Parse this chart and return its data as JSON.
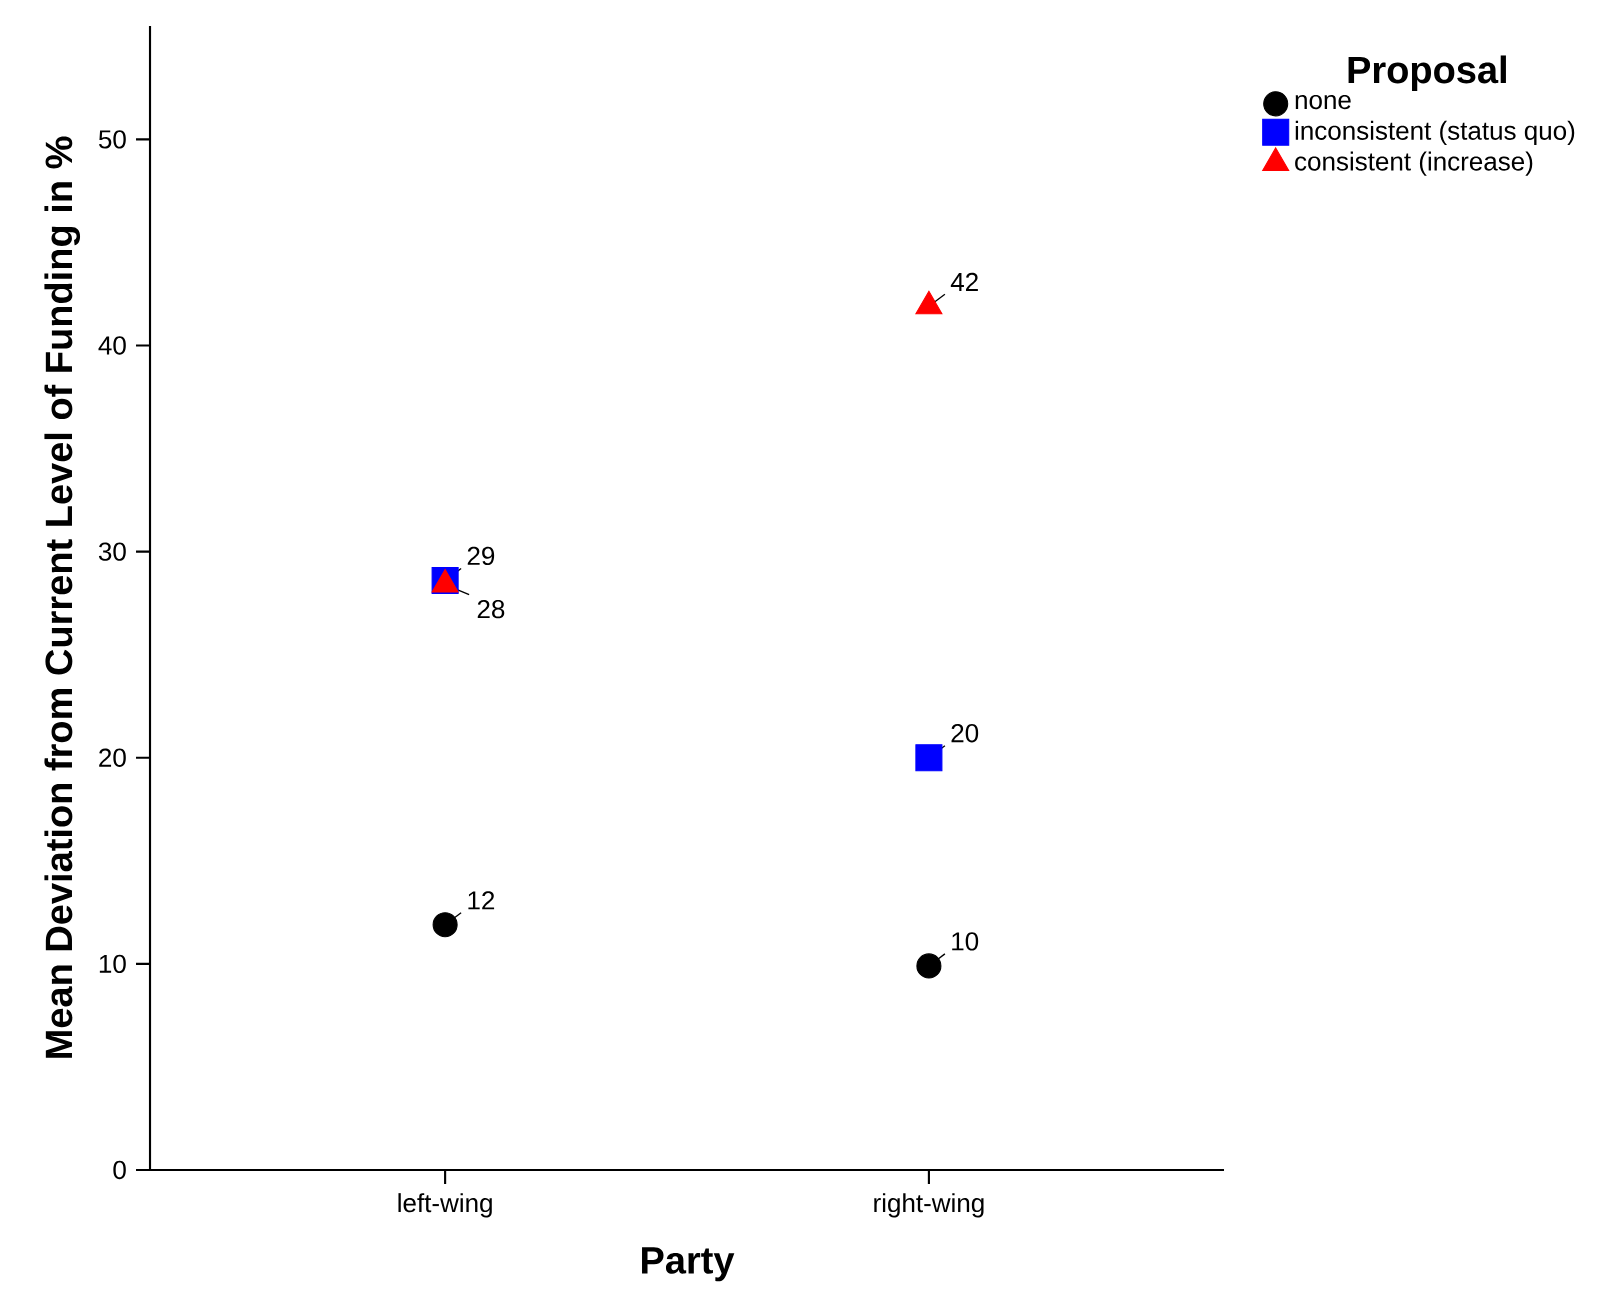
{
  "chart_data": {
    "type": "scatter",
    "xlabel": "Party",
    "ylabel": "Mean Deviation from Current Level of Funding in %",
    "legend_title": "Proposal",
    "legend": "top right",
    "categories": [
      "left-wing",
      "right-wing"
    ],
    "ylim": [
      0,
      55.5
    ],
    "yticks": [
      0,
      10,
      20,
      30,
      40,
      50
    ],
    "series": [
      {
        "name": "none",
        "color": "#000000",
        "marker": "circle",
        "values": [
          11.9,
          9.9
        ],
        "value_labels": [
          "12",
          "10"
        ]
      },
      {
        "name": "inconsistent (status quo)",
        "color": "#0000ff",
        "marker": "square",
        "values": [
          28.6,
          20
        ],
        "value_labels": [
          "29",
          "20"
        ]
      },
      {
        "name": "consistent (increase)",
        "color": "#ff0000",
        "marker": "triangle",
        "values": [
          28.4,
          41.9
        ],
        "value_labels": [
          "28",
          "42"
        ]
      }
    ]
  }
}
